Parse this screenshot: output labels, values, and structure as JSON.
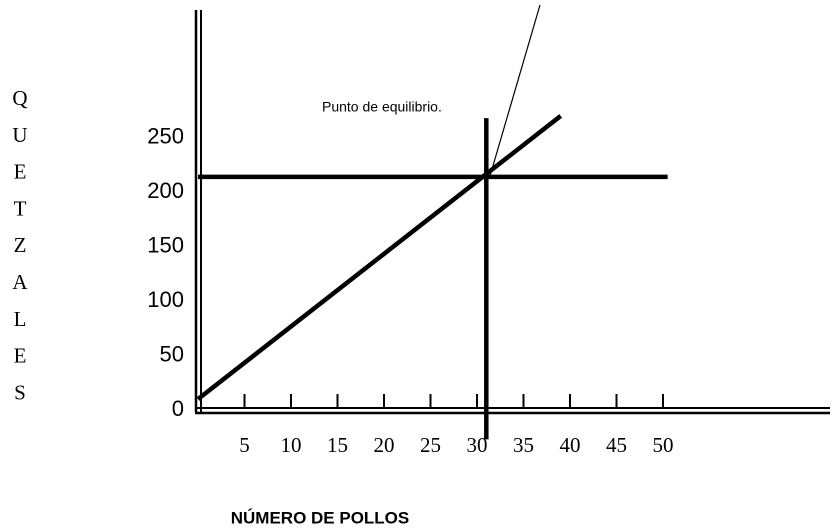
{
  "chart_data": {
    "type": "line",
    "x_label": "NÚMERO DE POLLOS",
    "y_label": "QUETZALES",
    "annotation": "Punto de equilibrio.",
    "color": "#000000",
    "xlim": [
      0,
      68
    ],
    "ylim": [
      0,
      370
    ],
    "xticks": [
      5,
      10,
      15,
      20,
      25,
      30,
      35,
      40,
      45,
      50
    ],
    "yticks": [
      0,
      50,
      100,
      150,
      200,
      250
    ],
    "series": [
      {
        "x": [
          0,
          39
        ],
        "values": [
          10,
          270
        ]
      },
      {
        "x": [
          0,
          50.5
        ],
        "values": [
          214,
          214
        ]
      },
      {
        "x": [
          31,
          31
        ],
        "values": [
          -27,
          268
        ]
      }
    ]
  }
}
